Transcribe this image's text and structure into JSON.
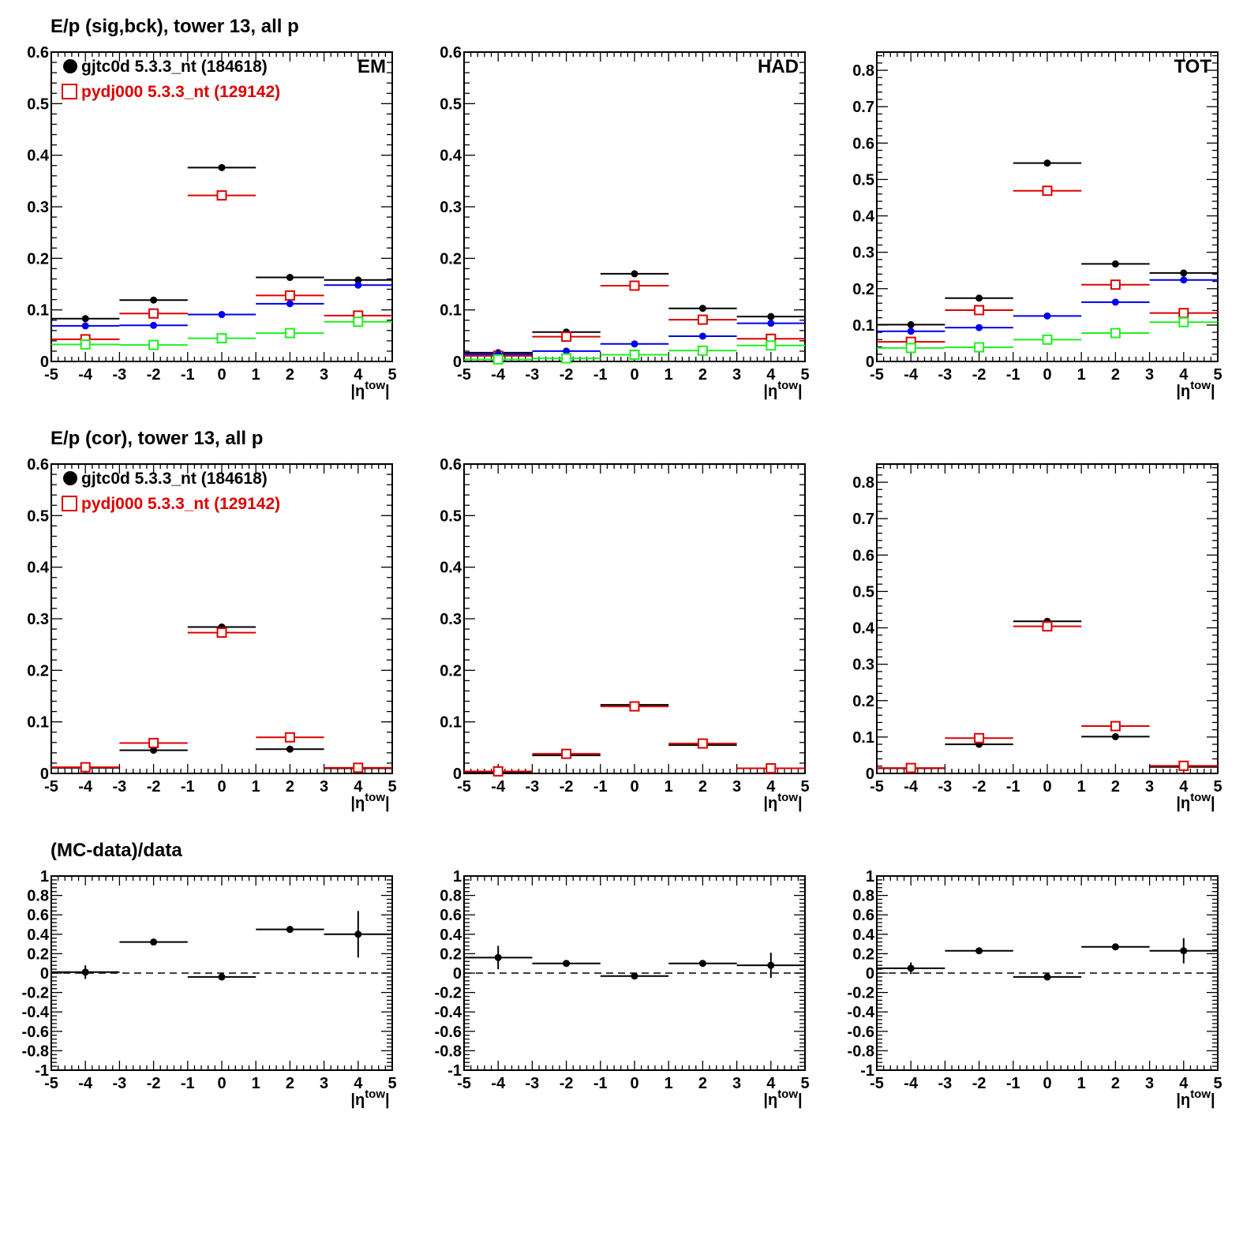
{
  "row_titles": [
    "E/p (sig,bck), tower 13, all p",
    "E/p (cor), tower 13, all p",
    "(MC-data)/data"
  ],
  "legend": [
    {
      "label": "gjtc0d 5.3.3_nt (184618)",
      "color": "#000000",
      "marker": "filled-circle"
    },
    {
      "label": "pydj000 5.3.3_nt (129142)",
      "color": "#dd0000",
      "marker": "open-square"
    }
  ],
  "colors": {
    "data": "#000000",
    "mc": "#dd0000",
    "blue": "#0000ee",
    "green": "#22ee22",
    "axis": "#000000"
  },
  "chart_data": [
    {
      "type": "scatter",
      "id": "sigbck-em",
      "corner_label": "EM",
      "xlabel": "|η^tow|",
      "xlim": [
        -5,
        5
      ],
      "ylim": [
        0,
        0.6
      ],
      "xticks": [
        -5,
        -4,
        -3,
        -2,
        -1,
        0,
        1,
        2,
        3,
        4,
        5
      ],
      "yticks": [
        0,
        0.1,
        0.2,
        0.3,
        0.4,
        0.5,
        0.6
      ],
      "x_bins": [
        [
          -5,
          -3
        ],
        [
          -3,
          -1
        ],
        [
          -1,
          1
        ],
        [
          1,
          3
        ],
        [
          3,
          5
        ]
      ],
      "x": [
        -4,
        -2,
        0,
        2,
        4
      ],
      "series": [
        {
          "name": "gjtc0d 5.3.3_nt (184618)",
          "color": "#000000",
          "marker": "filled-circle",
          "values": [
            0.083,
            0.119,
            0.376,
            0.163,
            0.158
          ]
        },
        {
          "name": "pydj000 5.3.3_nt (129142)",
          "color": "#dd0000",
          "marker": "open-square",
          "values": [
            0.043,
            0.093,
            0.322,
            0.128,
            0.089
          ]
        },
        {
          "color": "#0000ee",
          "marker": "filled-circle",
          "values": [
            0.069,
            0.07,
            0.091,
            0.112,
            0.148
          ]
        },
        {
          "color": "#22ee22",
          "marker": "open-square",
          "values": [
            0.033,
            0.032,
            0.045,
            0.055,
            0.077
          ]
        }
      ]
    },
    {
      "type": "scatter",
      "id": "sigbck-had",
      "corner_label": "HAD",
      "xlabel": "|η^tow|",
      "xlim": [
        -5,
        5
      ],
      "ylim": [
        0,
        0.6
      ],
      "xticks": [
        -5,
        -4,
        -3,
        -2,
        -1,
        0,
        1,
        2,
        3,
        4,
        5
      ],
      "yticks": [
        0,
        0.1,
        0.2,
        0.3,
        0.4,
        0.5,
        0.6
      ],
      "x_bins": [
        [
          -5,
          -3
        ],
        [
          -3,
          -1
        ],
        [
          -1,
          1
        ],
        [
          1,
          3
        ],
        [
          3,
          5
        ]
      ],
      "x": [
        -4,
        -2,
        0,
        2,
        4
      ],
      "series": [
        {
          "name": "gjtc0d 5.3.3_nt (184618)",
          "color": "#000000",
          "marker": "filled-circle",
          "values": [
            0.017,
            0.057,
            0.17,
            0.103,
            0.087
          ]
        },
        {
          "name": "pydj000 5.3.3_nt (129142)",
          "color": "#dd0000",
          "marker": "open-square",
          "values": [
            0.011,
            0.048,
            0.147,
            0.081,
            0.044
          ]
        },
        {
          "color": "#0000ee",
          "marker": "filled-circle",
          "values": [
            0.014,
            0.02,
            0.034,
            0.049,
            0.074
          ]
        },
        {
          "color": "#22ee22",
          "marker": "open-square",
          "values": [
            0.004,
            0.006,
            0.013,
            0.021,
            0.031
          ]
        }
      ]
    },
    {
      "type": "scatter",
      "id": "sigbck-tot",
      "corner_label": "TOT",
      "xlabel": "|η^tow|",
      "xlim": [
        -5,
        5
      ],
      "ylim": [
        0,
        0.85
      ],
      "xticks": [
        -5,
        -4,
        -3,
        -2,
        -1,
        0,
        1,
        2,
        3,
        4,
        5
      ],
      "yticks": [
        0,
        0.1,
        0.2,
        0.3,
        0.4,
        0.5,
        0.6,
        0.7,
        0.8
      ],
      "x_bins": [
        [
          -5,
          -3
        ],
        [
          -3,
          -1
        ],
        [
          -1,
          1
        ],
        [
          1,
          3
        ],
        [
          3,
          5
        ]
      ],
      "x": [
        -4,
        -2,
        0,
        2,
        4
      ],
      "series": [
        {
          "name": "gjtc0d 5.3.3_nt (184618)",
          "color": "#000000",
          "marker": "filled-circle",
          "values": [
            0.101,
            0.174,
            0.545,
            0.268,
            0.243
          ]
        },
        {
          "name": "pydj000 5.3.3_nt (129142)",
          "color": "#dd0000",
          "marker": "open-square",
          "values": [
            0.054,
            0.141,
            0.469,
            0.211,
            0.133
          ]
        },
        {
          "color": "#0000ee",
          "marker": "filled-circle",
          "values": [
            0.083,
            0.093,
            0.125,
            0.163,
            0.224
          ]
        },
        {
          "color": "#22ee22",
          "marker": "open-square",
          "values": [
            0.037,
            0.039,
            0.06,
            0.078,
            0.108
          ]
        }
      ]
    },
    {
      "type": "scatter",
      "id": "cor-em",
      "xlabel": "|η^tow|",
      "xlim": [
        -5,
        5
      ],
      "ylim": [
        0,
        0.6
      ],
      "xticks": [
        -5,
        -4,
        -3,
        -2,
        -1,
        0,
        1,
        2,
        3,
        4,
        5
      ],
      "yticks": [
        0,
        0.1,
        0.2,
        0.3,
        0.4,
        0.5,
        0.6
      ],
      "x_bins": [
        [
          -5,
          -3
        ],
        [
          -3,
          -1
        ],
        [
          -1,
          1
        ],
        [
          1,
          3
        ],
        [
          3,
          5
        ]
      ],
      "x": [
        -4,
        -2,
        0,
        2,
        4
      ],
      "series": [
        {
          "name": "gjtc0d 5.3.3_nt (184618)",
          "color": "#000000",
          "marker": "filled-circle",
          "values": [
            0.011,
            0.045,
            0.284,
            0.047,
            0.01
          ]
        },
        {
          "name": "pydj000 5.3.3_nt (129142)",
          "color": "#dd0000",
          "marker": "open-square",
          "values": [
            0.012,
            0.059,
            0.273,
            0.07,
            0.011
          ]
        }
      ]
    },
    {
      "type": "scatter",
      "id": "cor-had",
      "xlabel": "|η^tow|",
      "xlim": [
        -5,
        5
      ],
      "ylim": [
        0,
        0.6
      ],
      "xticks": [
        -5,
        -4,
        -3,
        -2,
        -1,
        0,
        1,
        2,
        3,
        4,
        5
      ],
      "yticks": [
        0,
        0.1,
        0.2,
        0.3,
        0.4,
        0.5,
        0.6
      ],
      "x_bins": [
        [
          -5,
          -3
        ],
        [
          -3,
          -1
        ],
        [
          -1,
          1
        ],
        [
          1,
          3
        ],
        [
          3,
          5
        ]
      ],
      "x": [
        -4,
        -2,
        0,
        2,
        4
      ],
      "series": [
        {
          "name": "gjtc0d 5.3.3_nt (184618)",
          "color": "#000000",
          "marker": "filled-circle",
          "values": [
            0.003,
            0.035,
            0.133,
            0.055,
            0.01
          ]
        },
        {
          "name": "pydj000 5.3.3_nt (129142)",
          "color": "#dd0000",
          "marker": "open-square",
          "values": [
            0.004,
            0.038,
            0.13,
            0.058,
            0.01
          ]
        }
      ]
    },
    {
      "type": "scatter",
      "id": "cor-tot",
      "xlabel": "|η^tow|",
      "xlim": [
        -5,
        5
      ],
      "ylim": [
        0,
        0.85
      ],
      "xticks": [
        -5,
        -4,
        -3,
        -2,
        -1,
        0,
        1,
        2,
        3,
        4,
        5
      ],
      "yticks": [
        0,
        0.1,
        0.2,
        0.3,
        0.4,
        0.5,
        0.6,
        0.7,
        0.8
      ],
      "x_bins": [
        [
          -5,
          -3
        ],
        [
          -3,
          -1
        ],
        [
          -1,
          1
        ],
        [
          1,
          3
        ],
        [
          3,
          5
        ]
      ],
      "x": [
        -4,
        -2,
        0,
        2,
        4
      ],
      "series": [
        {
          "name": "gjtc0d 5.3.3_nt (184618)",
          "color": "#000000",
          "marker": "filled-circle",
          "values": [
            0.014,
            0.08,
            0.418,
            0.101,
            0.018
          ]
        },
        {
          "name": "pydj000 5.3.3_nt (129142)",
          "color": "#dd0000",
          "marker": "open-square",
          "values": [
            0.015,
            0.097,
            0.404,
            0.13,
            0.021
          ]
        }
      ]
    },
    {
      "type": "scatter",
      "id": "ratio-em",
      "xlabel": "|η^tow|",
      "xlim": [
        -5,
        5
      ],
      "ylim": [
        -1,
        1
      ],
      "reference_line": 0,
      "xticks": [
        -5,
        -4,
        -3,
        -2,
        -1,
        0,
        1,
        2,
        3,
        4,
        5
      ],
      "yticks": [
        -1,
        -0.8,
        -0.6,
        -0.4,
        -0.2,
        0,
        0.2,
        0.4,
        0.6,
        0.8,
        1
      ],
      "x_bins": [
        [
          -5,
          -3
        ],
        [
          -3,
          -1
        ],
        [
          -1,
          1
        ],
        [
          1,
          3
        ],
        [
          3,
          5
        ]
      ],
      "x": [
        -4,
        -2,
        0,
        2,
        4
      ],
      "series": [
        {
          "color": "#000000",
          "marker": "filled-circle",
          "values": [
            0.01,
            0.32,
            -0.04,
            0.45,
            0.4
          ],
          "errors": [
            0.07,
            0.01,
            0.01,
            0.01,
            0.24
          ]
        }
      ]
    },
    {
      "type": "scatter",
      "id": "ratio-had",
      "xlabel": "|η^tow|",
      "xlim": [
        -5,
        5
      ],
      "ylim": [
        -1,
        1
      ],
      "reference_line": 0,
      "xticks": [
        -5,
        -4,
        -3,
        -2,
        -1,
        0,
        1,
        2,
        3,
        4,
        5
      ],
      "yticks": [
        -1,
        -0.8,
        -0.6,
        -0.4,
        -0.2,
        0,
        0.2,
        0.4,
        0.6,
        0.8,
        1
      ],
      "x_bins": [
        [
          -5,
          -3
        ],
        [
          -3,
          -1
        ],
        [
          -1,
          1
        ],
        [
          1,
          3
        ],
        [
          3,
          5
        ]
      ],
      "x": [
        -4,
        -2,
        0,
        2,
        4
      ],
      "series": [
        {
          "color": "#000000",
          "marker": "filled-circle",
          "values": [
            0.16,
            0.1,
            -0.03,
            0.1,
            0.08
          ],
          "errors": [
            0.12,
            0.01,
            0.01,
            0.01,
            0.13
          ]
        }
      ]
    },
    {
      "type": "scatter",
      "id": "ratio-tot",
      "xlabel": "|η^tow|",
      "xlim": [
        -5,
        5
      ],
      "ylim": [
        -1,
        1
      ],
      "reference_line": 0,
      "xticks": [
        -5,
        -4,
        -3,
        -2,
        -1,
        0,
        1,
        2,
        3,
        4,
        5
      ],
      "yticks": [
        -1,
        -0.8,
        -0.6,
        -0.4,
        -0.2,
        0,
        0.2,
        0.4,
        0.6,
        0.8,
        1
      ],
      "x_bins": [
        [
          -5,
          -3
        ],
        [
          -3,
          -1
        ],
        [
          -1,
          1
        ],
        [
          1,
          3
        ],
        [
          3,
          5
        ]
      ],
      "x": [
        -4,
        -2,
        0,
        2,
        4
      ],
      "series": [
        {
          "color": "#000000",
          "marker": "filled-circle",
          "values": [
            0.05,
            0.23,
            -0.04,
            0.27,
            0.23
          ],
          "errors": [
            0.06,
            0.01,
            0.01,
            0.01,
            0.13
          ]
        }
      ]
    }
  ]
}
